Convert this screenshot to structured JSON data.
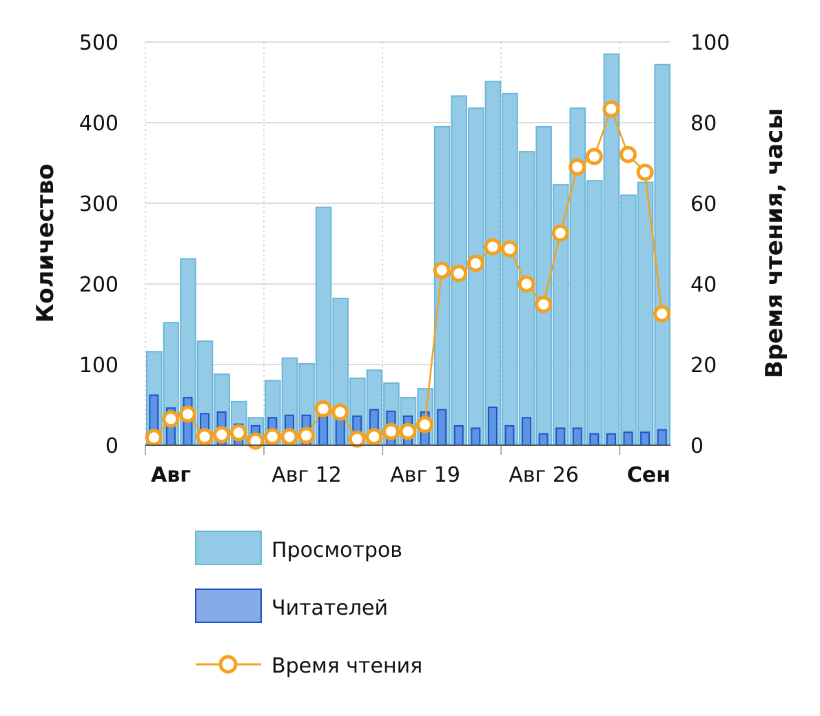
{
  "chart_data": {
    "type": "bar",
    "title": "",
    "ylabel": "Количество",
    "y2label": "Время чтения, часы",
    "ylim": [
      0,
      500
    ],
    "y2lim": [
      0,
      100
    ],
    "yticks": [
      "0",
      "100",
      "200",
      "300",
      "400",
      "500"
    ],
    "y2ticks": [
      "0",
      "20",
      "40",
      "60",
      "80",
      "100"
    ],
    "xticks": [
      {
        "label": "Авг",
        "index": 0,
        "bold": true
      },
      {
        "label": "Авг 12",
        "index": 7,
        "bold": false
      },
      {
        "label": "Авг 19",
        "index": 14,
        "bold": false
      },
      {
        "label": "Авг 26",
        "index": 21,
        "bold": false
      },
      {
        "label": "Сен",
        "index": 28,
        "bold": true
      }
    ],
    "grid": true,
    "legend_position": "bottom",
    "series": [
      {
        "name": "Просмотров",
        "type": "bar",
        "axis": "left",
        "color": "#93cbe6",
        "stroke": "#6cb6d9",
        "values": [
          116,
          152,
          231,
          129,
          88,
          54,
          34,
          80,
          108,
          101,
          295,
          182,
          83,
          93,
          77,
          59,
          70,
          395,
          433,
          418,
          451,
          436,
          364,
          395,
          323,
          418,
          328,
          485,
          310,
          326,
          472
        ]
      },
      {
        "name": "Читателей",
        "type": "bar",
        "axis": "left",
        "color": "#5c95e3",
        "stroke": "#1f52c4",
        "values": [
          62,
          46,
          59,
          39,
          41,
          26,
          24,
          34,
          37,
          37,
          35,
          35,
          36,
          44,
          42,
          36,
          41,
          44,
          24,
          21,
          47,
          24,
          34,
          14,
          21,
          21,
          14,
          14,
          16,
          16,
          19
        ]
      },
      {
        "name": "Время чтения",
        "type": "line",
        "axis": "right",
        "color": "#f5a01e",
        "values": [
          1.9,
          6.5,
          7.7,
          2.1,
          2.6,
          3.1,
          1.0,
          2.1,
          2.1,
          2.4,
          9.0,
          8.2,
          1.5,
          2.1,
          3.4,
          3.4,
          5.1,
          43.4,
          42.6,
          45.1,
          49.2,
          48.7,
          40.0,
          34.9,
          52.6,
          69.0,
          71.6,
          83.4,
          72.1,
          67.7,
          32.6
        ]
      }
    ]
  }
}
